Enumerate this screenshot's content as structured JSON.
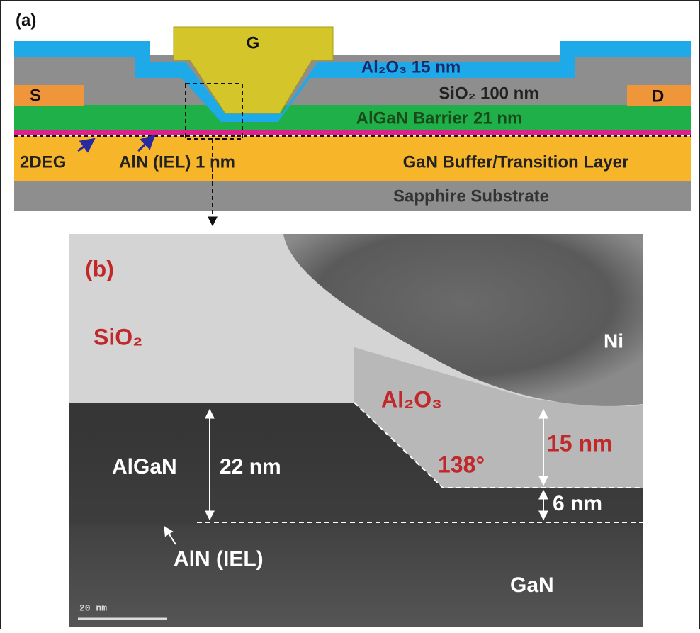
{
  "panel_a": {
    "label": "(a)",
    "gate": "G",
    "source": "S",
    "drain": "D",
    "layers": {
      "al2o3": "Al₂O₃ 15 nm",
      "sio2": "SiO₂ 100 nm",
      "algan": "AlGaN Barrier 21 nm",
      "gan": "GaN Buffer/Transition Layer",
      "sapphire": "Sapphire Substrate"
    },
    "annotations": {
      "twodeg": "2DEG",
      "aln": "AlN (IEL) 1 nm"
    }
  },
  "panel_b": {
    "label": "(b)",
    "sio2": "SiO₂",
    "ni": "Ni",
    "al2o3": "Al₂O₃",
    "thickness_al2o3": "15 nm",
    "angle": "138°",
    "algan": "AlGaN",
    "thickness_algan": "22 nm",
    "thickness_step": "6 nm",
    "aln": "AlN (IEL)",
    "gan": "GaN",
    "scale_bar": "20 nm"
  }
}
